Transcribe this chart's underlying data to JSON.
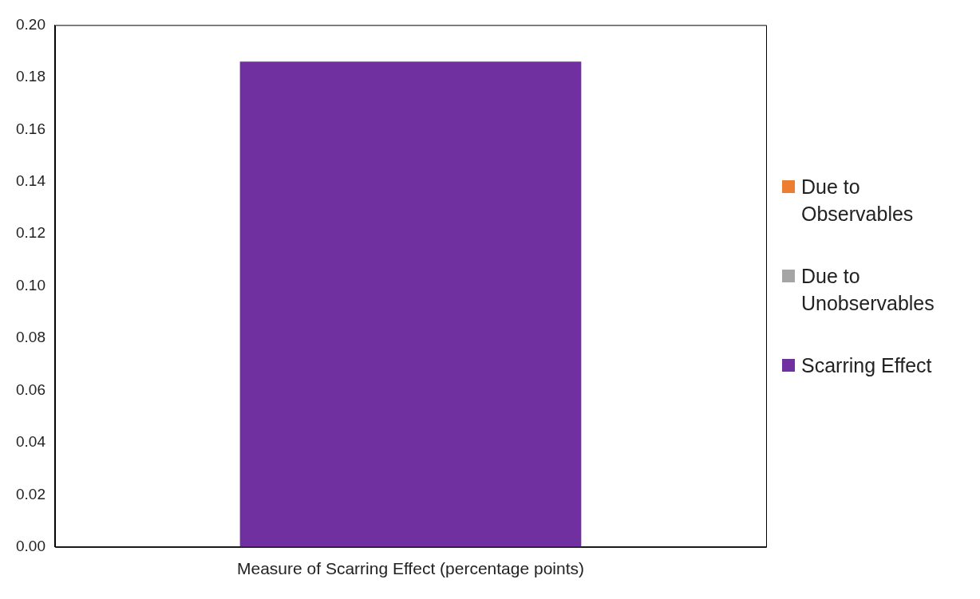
{
  "chart_data": {
    "type": "bar",
    "stacked": true,
    "categories": [
      "Measure of Scarring Effect (percentage points)"
    ],
    "series": [
      {
        "name": "Due to Observables",
        "color": "#ed7d31",
        "values": [
          0
        ]
      },
      {
        "name": "Due to Unobservables",
        "color": "#a5a5a5",
        "values": [
          0
        ]
      },
      {
        "name": "Scarring Effect",
        "color": "#7030a0",
        "values": [
          0.186
        ]
      }
    ],
    "ylim": [
      0,
      0.2
    ],
    "yticks": [
      {
        "value": 0,
        "label": "0.00"
      },
      {
        "value": 0.02,
        "label": "0.02"
      },
      {
        "value": 0.04,
        "label": "0.04"
      },
      {
        "value": 0.06,
        "label": "0.06"
      },
      {
        "value": 0.08,
        "label": "0.08"
      },
      {
        "value": 0.1,
        "label": "0.10"
      },
      {
        "value": 0.12,
        "label": "0.12"
      },
      {
        "value": 0.14,
        "label": "0.14"
      },
      {
        "value": 0.16,
        "label": "0.16"
      },
      {
        "value": 0.18,
        "label": "0.18"
      },
      {
        "value": 0.2,
        "label": "0.20"
      }
    ],
    "grid": false,
    "legend": "right"
  }
}
